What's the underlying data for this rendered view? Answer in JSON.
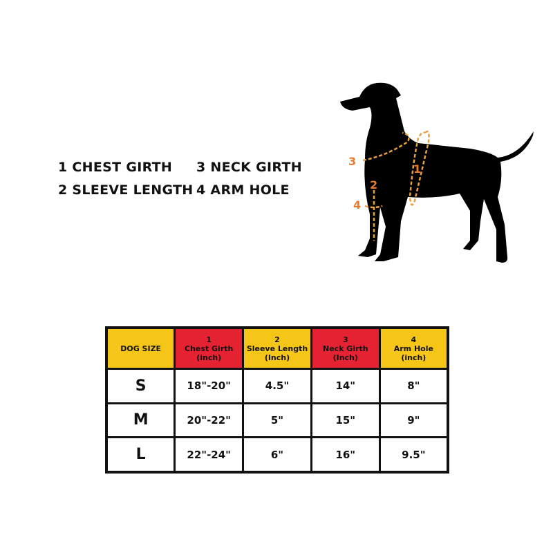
{
  "legend": {
    "items": [
      "1 CHEST GIRTH",
      "3 NECK GIRTH",
      "2 SLEEVE LENGTH",
      "4 ARM HOLE"
    ]
  },
  "figure": {
    "markers": [
      "1",
      "2",
      "3",
      "4"
    ],
    "marker_color": "#e87a2e"
  },
  "table": {
    "headers": [
      {
        "num": "",
        "label": "DOG SIZE",
        "unit": "",
        "color": "#f5c518"
      },
      {
        "num": "1",
        "label": "Chest Girth",
        "unit": "(inch)",
        "color": "#e52231"
      },
      {
        "num": "2",
        "label": "Sleeve Length",
        "unit": "(Inch)",
        "color": "#f5c518"
      },
      {
        "num": "3",
        "label": "Neck Girth",
        "unit": "(Inch)",
        "color": "#e52231"
      },
      {
        "num": "4",
        "label": "Arm Hole",
        "unit": "(inch)",
        "color": "#f5c518"
      }
    ],
    "rows": [
      [
        "S",
        "18\"-20\"",
        "4.5\"",
        "14\"",
        "8\""
      ],
      [
        "M",
        "20\"-22\"",
        "5\"",
        "15\"",
        "9\""
      ],
      [
        "L",
        "22\"-24\"",
        "6\"",
        "16\"",
        "9.5\""
      ]
    ]
  }
}
